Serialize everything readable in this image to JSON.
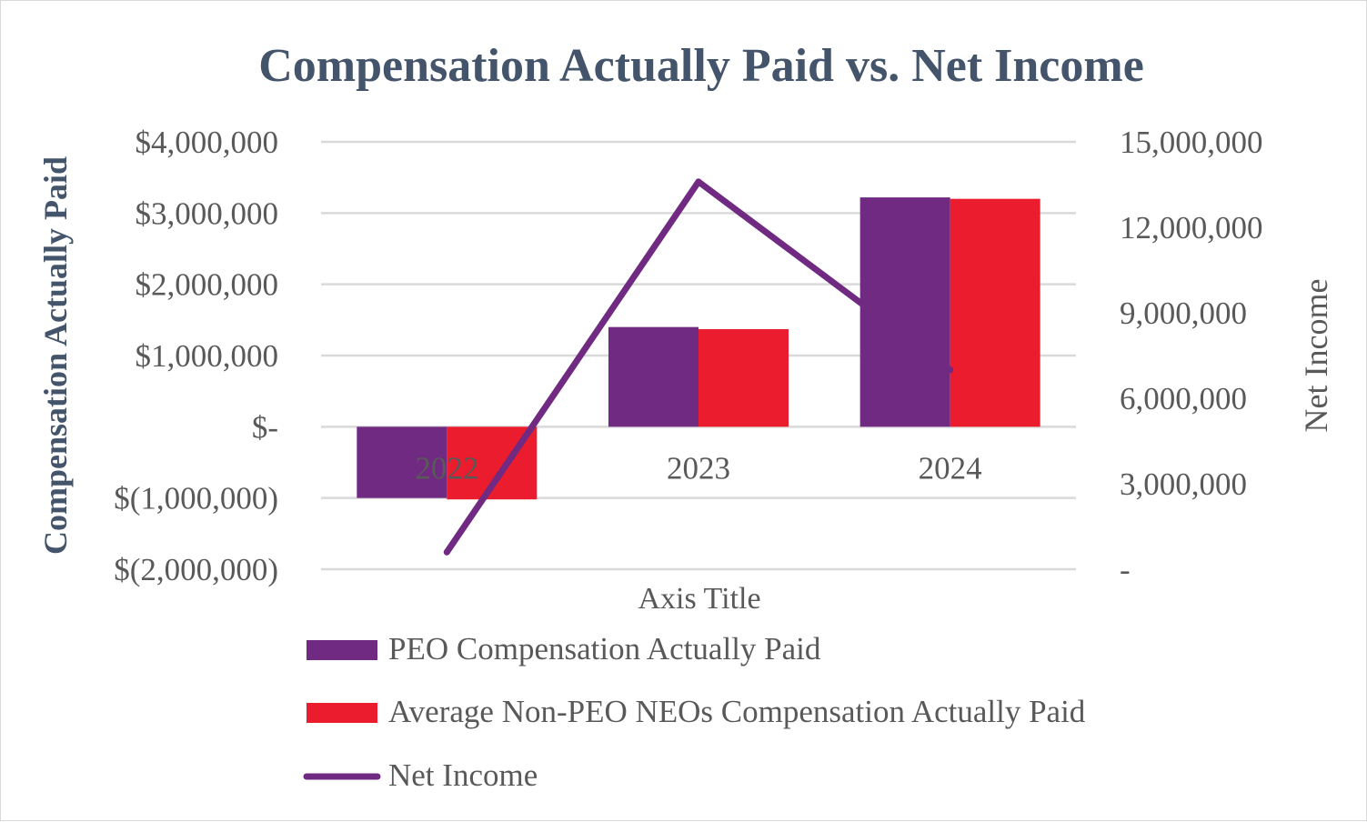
{
  "chart_data": {
    "type": "bar",
    "title": "Compensation Actually Paid vs. Net Income",
    "xlabel": "Axis Title",
    "ylabel": "Compensation Actually Paid",
    "y2label": "Net Income",
    "categories": [
      "2022",
      "2023",
      "2024"
    ],
    "ylim": [
      -2000000,
      4000000
    ],
    "y2lim": [
      0,
      15000000
    ],
    "yticks": [
      "$4,000,000",
      "$3,000,000",
      "$2,000,000",
      "$1,000,000",
      "$-",
      "$(1,000,000)",
      "$(2,000,000)"
    ],
    "y2ticks": [
      "15,000,000",
      "12,000,000",
      "9,000,000",
      "6,000,000",
      "3,000,000",
      "-"
    ],
    "grid": true,
    "legend_position": "bottom",
    "series": [
      {
        "name": "PEO Compensation Actually Paid",
        "type": "bar",
        "axis": "left",
        "color": "#702a82",
        "values": [
          -1000000,
          1400000,
          3220000
        ]
      },
      {
        "name": "Average Non-PEO NEOs Compensation Actually Paid",
        "type": "bar",
        "axis": "left",
        "color": "#ea1c2d",
        "values": [
          -1020000,
          1370000,
          3200000
        ]
      },
      {
        "name": "Net Income",
        "type": "line",
        "axis": "right",
        "color": "#702a82",
        "values": [
          600000,
          13600000,
          7000000
        ]
      }
    ]
  }
}
